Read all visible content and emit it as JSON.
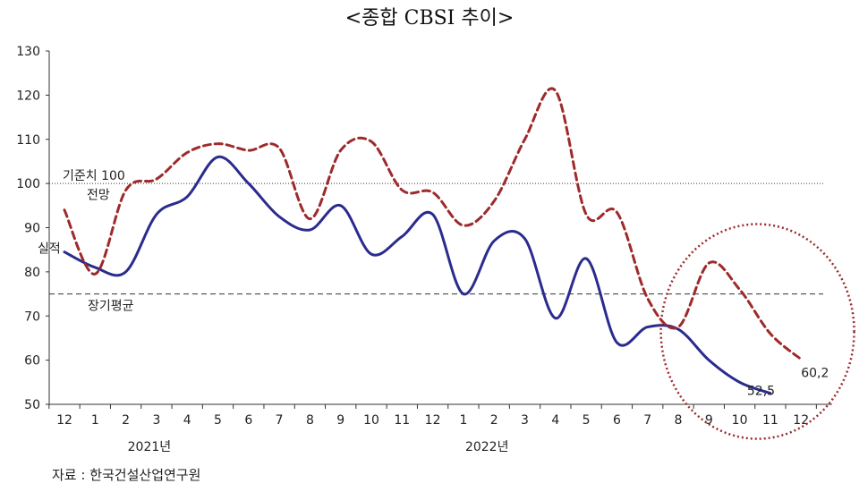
{
  "title": "<종합 CBSI 추이>",
  "source": "자료 : 한국건설산업연구원",
  "chart_data": {
    "type": "line",
    "ylim": [
      50,
      130
    ],
    "yticks": [
      50,
      60,
      70,
      80,
      90,
      100,
      110,
      120,
      130
    ],
    "x_labels": [
      "12",
      "1",
      "2",
      "3",
      "4",
      "5",
      "6",
      "7",
      "8",
      "9",
      "10",
      "11",
      "12",
      "1",
      "2",
      "3",
      "4",
      "5",
      "6",
      "7",
      "8",
      "9",
      "10",
      "11",
      "12"
    ],
    "year_labels": [
      {
        "text": "2021년",
        "index": 3
      },
      {
        "text": "2022년",
        "index": 14
      }
    ],
    "series": [
      {
        "name": "실적",
        "color": "#2b2b8f",
        "dash": "solid",
        "values": [
          84.5,
          81.0,
          80.0,
          93.0,
          97.0,
          106.0,
          100.0,
          92.5,
          89.5,
          95.0,
          84.0,
          88.0,
          93.0,
          75.0,
          87.0,
          87.5,
          69.5,
          83.0,
          64.0,
          67.5,
          67.0,
          60.0,
          55.0,
          52.5,
          null
        ]
      },
      {
        "name": "전망",
        "color": "#9e2a2b",
        "dash": "dashed",
        "values": [
          94.0,
          79.5,
          98.5,
          101.0,
          107.0,
          109.0,
          107.5,
          108.0,
          92.0,
          107.5,
          109.5,
          98.5,
          98.0,
          90.5,
          96.0,
          110.0,
          121.0,
          93.0,
          93.5,
          74.0,
          67.5,
          82.0,
          76.0,
          66.0,
          60.2
        ]
      }
    ],
    "reference_lines": [
      {
        "label": "기준치 100",
        "value": 100,
        "style": "dotted"
      },
      {
        "label": "장기평균",
        "value": 75,
        "style": "dashed"
      }
    ],
    "annotations": [
      {
        "text": "60,2",
        "series": "전망",
        "index": 24
      },
      {
        "text": "52,5",
        "series": "실적",
        "index": 23
      }
    ],
    "highlight": {
      "shape": "circle",
      "style": "dotted",
      "color": "#9e2a2b",
      "from_index": 20,
      "to_index": 24
    }
  }
}
